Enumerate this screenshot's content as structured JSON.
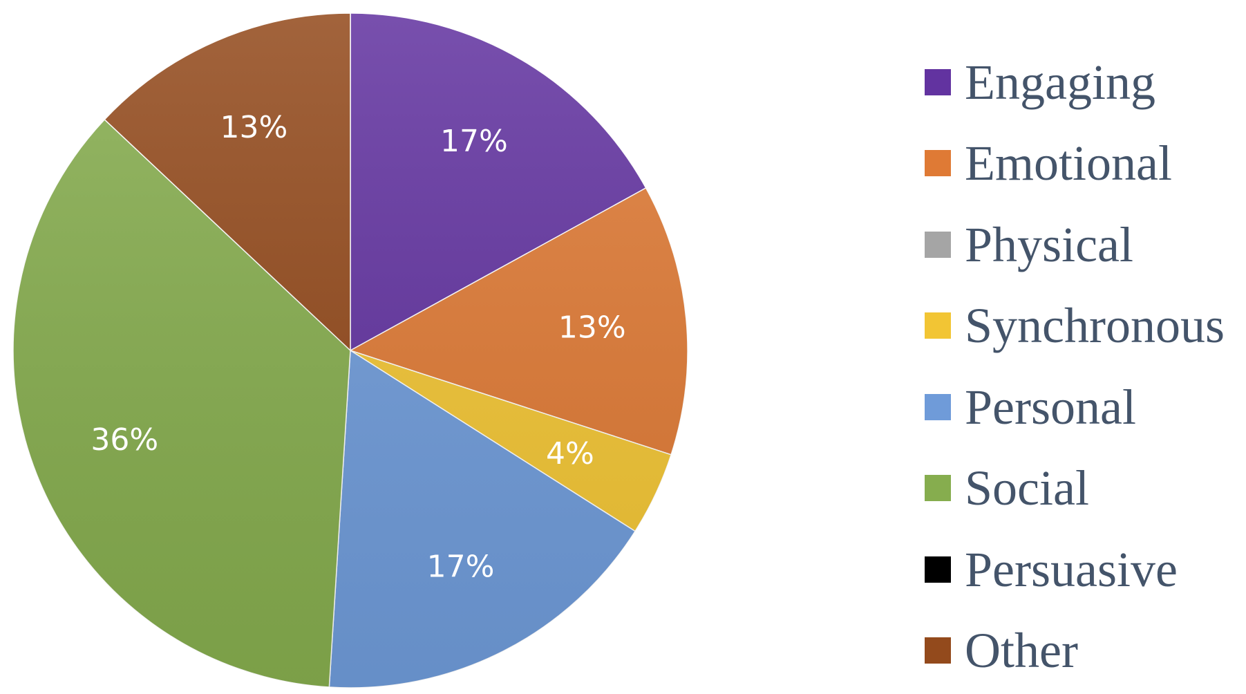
{
  "chart_data": {
    "type": "pie",
    "title": "",
    "start_angle": "12 o'clock",
    "direction": "clockwise",
    "data_labels": "percent",
    "legend_position": "right",
    "slices": [
      {
        "name": "Engaging",
        "value": 17,
        "label": "17%",
        "color": "#6233a0"
      },
      {
        "name": "Emotional",
        "value": 13,
        "label": "13%",
        "color": "#df7a35"
      },
      {
        "name": "Physical",
        "value": 0,
        "label": "",
        "color": "#a5a5a5"
      },
      {
        "name": "Synchronous",
        "value": 4,
        "label": "4%",
        "color": "#f2c534"
      },
      {
        "name": "Personal",
        "value": 17,
        "label": "17%",
        "color": "#6f9bd9"
      },
      {
        "name": "Social",
        "value": 36,
        "label": "36%",
        "color": "#86ad4e"
      },
      {
        "name": "Persuasive",
        "value": 0,
        "label": "",
        "color": "#000000"
      },
      {
        "name": "Other",
        "value": 13,
        "label": "13%",
        "color": "#934a1c"
      }
    ]
  }
}
